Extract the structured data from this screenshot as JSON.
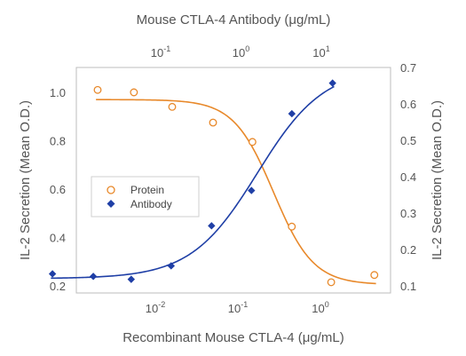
{
  "chart_data": {
    "type": "scatter",
    "top_axis": {
      "label": "Mouse CTLA-4 Antibody (μg/mL)",
      "scale": "log",
      "ticks": [
        {
          "base": "10",
          "exp": "-1"
        },
        {
          "base": "10",
          "exp": "0"
        },
        {
          "base": "10",
          "exp": "1"
        }
      ]
    },
    "bottom_axis": {
      "label": "Recombinant Mouse CTLA-4 (μg/mL)",
      "scale": "log",
      "ticks": [
        {
          "base": "10",
          "exp": "-2"
        },
        {
          "base": "10",
          "exp": "-1"
        },
        {
          "base": "10",
          "exp": "0"
        }
      ]
    },
    "left_axis": {
      "label": "IL-2 Secretion (Mean O.D.)",
      "ylim": [
        0.2,
        1.1
      ],
      "ticks": [
        "0.2",
        "0.4",
        "0.6",
        "0.8",
        "1.0"
      ]
    },
    "right_axis": {
      "label": "IL-2 Secretion (Mean O.D.)",
      "ylim": [
        0.1,
        0.7
      ],
      "ticks": [
        "0.1",
        "0.2",
        "0.3",
        "0.4",
        "0.5",
        "0.6",
        "0.7"
      ]
    },
    "legend": {
      "placement": "center-left",
      "entries": [
        "Protein",
        "Antibody"
      ]
    },
    "series": [
      {
        "name": "Protein",
        "x_axis": "bottom",
        "y_axis": "left",
        "color": "#e8892b",
        "marker": "open-circle",
        "points": [
          {
            "x": 0.002,
            "y": 1.01
          },
          {
            "x": 0.0055,
            "y": 1.0
          },
          {
            "x": 0.016,
            "y": 0.94
          },
          {
            "x": 0.05,
            "y": 0.875
          },
          {
            "x": 0.15,
            "y": 0.795
          },
          {
            "x": 0.45,
            "y": 0.445
          },
          {
            "x": 1.35,
            "y": 0.215
          },
          {
            "x": 4.5,
            "y": 0.245
          }
        ],
        "fit": {
          "top": 0.97,
          "bottom": 0.205,
          "ec50": 0.27,
          "hill": 1.8
        }
      },
      {
        "name": "Antibody",
        "x_axis": "top",
        "y_axis": "right",
        "color": "#1f3fa6",
        "marker": "filled-diamond",
        "points": [
          {
            "x": 0.0045,
            "y": 0.133
          },
          {
            "x": 0.0145,
            "y": 0.126
          },
          {
            "x": 0.043,
            "y": 0.118
          },
          {
            "x": 0.135,
            "y": 0.155
          },
          {
            "x": 0.43,
            "y": 0.265
          },
          {
            "x": 1.35,
            "y": 0.362
          },
          {
            "x": 4.3,
            "y": 0.573
          },
          {
            "x": 13.8,
            "y": 0.657
          }
        ],
        "fit": {
          "bottom": 0.12,
          "top": 0.7,
          "ec50": 1.6,
          "hill": 1.05
        }
      }
    ]
  }
}
